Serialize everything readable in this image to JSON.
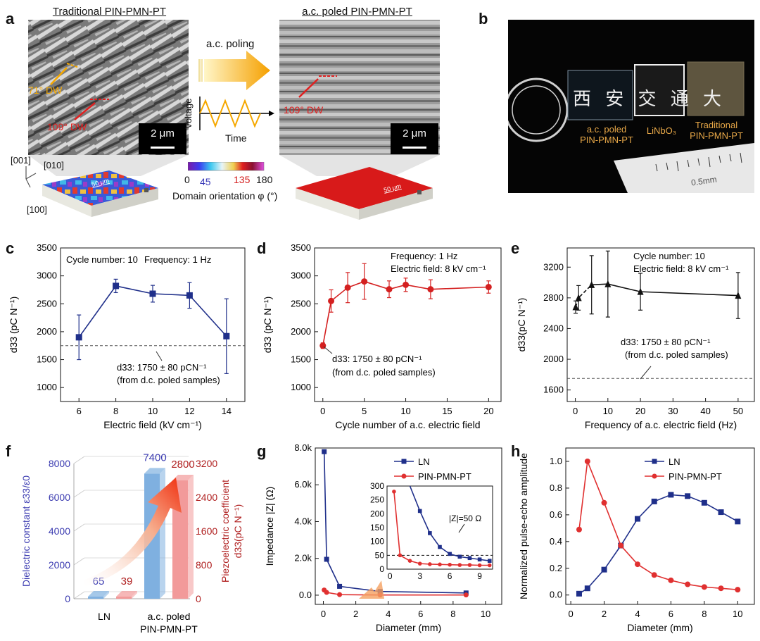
{
  "panel_labels": {
    "a": "a",
    "b": "b",
    "c": "c",
    "d": "d",
    "e": "e",
    "f": "f",
    "g": "g",
    "h": "h"
  },
  "panel_a": {
    "left_title": "Traditional PIN-PMN-PT",
    "right_title": "a.c. poled PIN-PMN-PT",
    "arrow_label": "a.c. poling",
    "voltage_label": "Voltage",
    "time_label": "Time",
    "dw71": "71° DW",
    "dw109_left": "109° DW",
    "dw109_right": "109° DW",
    "scale_left": "2 μm",
    "scale_right": "2 μm",
    "axis_001": "[001]",
    "axis_010": "[010]",
    "axis_100": "[100]",
    "colorbar_ticks": [
      "0",
      "45",
      "135",
      "180"
    ],
    "colorbar_label": "Domain orientation φ (°)",
    "block_scale_left": "50 μm",
    "block_scale_right": "50 μm"
  },
  "panel_b": {
    "sample1": [
      "a.c. poled",
      "PIN-PMN-PT"
    ],
    "sample2": "LiNbO₃",
    "sample3": [
      "Traditional",
      "PIN-PMN-PT"
    ],
    "chinese_text": "西 安 交 通 大",
    "ruler_label": "0.5mm"
  },
  "chart_data": [
    {
      "type": "line",
      "panel": "c",
      "annotations": [
        "Cycle number: 10",
        "Frequency: 1 Hz",
        "d33: 1750 ± 80 pCN⁻¹",
        "(from d.c. poled samples)"
      ],
      "xlabel": "Electric field (kV cm⁻¹)",
      "ylabel": "d33 (pC N⁻¹)",
      "x": [
        6,
        8,
        10,
        12,
        14
      ],
      "y": [
        1900,
        2820,
        2680,
        2650,
        1920
      ],
      "yerr": [
        400,
        120,
        150,
        230,
        670
      ],
      "reference": 1750,
      "xlim": [
        5,
        15
      ],
      "ylim": [
        750,
        3500
      ],
      "xticks": [
        6,
        8,
        10,
        12,
        14
      ],
      "yticks": [
        1000,
        1500,
        2000,
        2500,
        3000,
        3500
      ],
      "color": "#1f2f8a"
    },
    {
      "type": "line",
      "panel": "d",
      "annotations": [
        "Frequency: 1 Hz",
        "Electric field: 8 kV cm⁻¹",
        "d33: 1750 ± 80 pCN⁻¹",
        "(from d.c. poled samples)"
      ],
      "xlabel": "Cycle number of a.c. electric field",
      "ylabel": "d33 (pC N⁻¹)",
      "x": [
        0,
        1,
        3,
        5,
        8,
        10,
        13,
        20
      ],
      "y": [
        1750,
        2550,
        2790,
        2900,
        2760,
        2840,
        2760,
        2800
      ],
      "yerr": [
        50,
        200,
        270,
        320,
        150,
        120,
        170,
        110
      ],
      "xlim": [
        -1,
        21.5
      ],
      "ylim": [
        750,
        3500
      ],
      "xticks": [
        0,
        5,
        10,
        15,
        20
      ],
      "yticks": [
        1000,
        1500,
        2000,
        2500,
        3000,
        3500
      ],
      "color": "#d42020"
    },
    {
      "type": "line",
      "panel": "e",
      "annotations": [
        "Cycle number: 10",
        "Electric field: 8 kV cm⁻¹",
        "d33: 1750 ± 80 pCN⁻¹",
        "(from d.c. poled samples)"
      ],
      "xlabel": "Frequency of a.c. electric field (Hz)",
      "ylabel": "d33(pC N⁻¹)",
      "x": [
        0.1,
        1,
        5,
        10,
        20,
        50
      ],
      "y": [
        2680,
        2800,
        2970,
        2980,
        2880,
        2830
      ],
      "yerr": [
        80,
        160,
        380,
        430,
        240,
        300
      ],
      "reference": 1750,
      "xlim": [
        -2.5,
        55
      ],
      "ylim": [
        1450,
        3450
      ],
      "xticks": [
        0,
        10,
        20,
        30,
        40,
        50
      ],
      "yticks": [
        1600,
        2000,
        2400,
        2800,
        3200
      ],
      "color": "#111111"
    },
    {
      "type": "bar",
      "panel": "f",
      "categories": [
        "LN",
        "a.c. poled PIN-PMN-PT"
      ],
      "series": [
        {
          "name": "Dielectric constant ε33/ε0",
          "values": [
            65,
            7400
          ],
          "color": "#7fb0e0"
        },
        {
          "name": "Piezoelectric coefficient d33(pC N⁻¹)",
          "values": [
            39,
            2800
          ],
          "color": "#f29a9a"
        }
      ],
      "left_yticks": [
        0,
        2000,
        4000,
        6000,
        8000
      ],
      "right_yticks": [
        0,
        800,
        1600,
        2400,
        3200
      ],
      "left_ylim": [
        0,
        8000
      ],
      "right_ylim": [
        0,
        3200
      ],
      "left_ylabel": "Dielectric constant ε33/ε0",
      "right_ylabel": [
        "Piezoelectric coefficient",
        "d33(pC N⁻¹)"
      ],
      "category_labels": [
        "LN",
        "a.c. poled",
        "PIN-PMN-PT"
      ]
    },
    {
      "type": "line",
      "panel": "g",
      "xlabel": "Diameter (mm)",
      "ylabel": "Impedance |Z| (Ω)",
      "series": [
        {
          "name": "LN",
          "x": [
            0.05,
            0.2,
            1,
            3.5,
            8.8
          ],
          "y": [
            7800,
            1950,
            480,
            200,
            120
          ],
          "color": "#1f2f8a"
        },
        {
          "name": "PIN-PMN-PT",
          "x": [
            0.05,
            0.2,
            1,
            3.5,
            8.8
          ],
          "y": [
            280,
            150,
            30,
            10,
            10
          ],
          "color": "#e03030"
        }
      ],
      "xlim": [
        -0.5,
        11
      ],
      "ylim": [
        -500,
        8000
      ],
      "xticks": [
        0,
        2,
        4,
        6,
        8,
        10
      ],
      "ytick_labels": [
        "0.0",
        "2.0k",
        "4.0k",
        "6.0k",
        "8.0k"
      ],
      "yticks": [
        0,
        2000,
        4000,
        6000,
        8000
      ],
      "inset": {
        "annotation": "|Z|=50 Ω",
        "threshold": 50,
        "xticks": [
          0,
          3,
          6,
          9
        ],
        "yticks": [
          0,
          50,
          100,
          150,
          200,
          250,
          300
        ],
        "xlim": [
          -0.3,
          10.3
        ],
        "ylim": [
          0,
          300
        ],
        "LN": {
          "x": [
            2,
            3,
            4,
            5,
            6,
            7,
            8,
            9,
            10
          ],
          "y": [
            300,
            210,
            130,
            80,
            55,
            45,
            40,
            35,
            30
          ]
        },
        "PIN": {
          "x": [
            0.4,
            1,
            2,
            3,
            4,
            5,
            6,
            7,
            8,
            9,
            10
          ],
          "y": [
            280,
            50,
            30,
            20,
            18,
            17,
            16,
            15,
            15,
            14,
            14
          ]
        }
      }
    },
    {
      "type": "line",
      "panel": "h",
      "xlabel": "Diameter (mm)",
      "ylabel": "Normalized pulse-echo amplitude",
      "series": [
        {
          "name": "LN",
          "x": [
            0.5,
            1,
            2,
            3,
            4,
            5,
            6,
            7,
            8,
            9,
            10
          ],
          "y": [
            0.01,
            0.05,
            0.19,
            0.37,
            0.57,
            0.7,
            0.75,
            0.74,
            0.69,
            0.62,
            0.55
          ],
          "color": "#1f2f8a"
        },
        {
          "name": "PIN-PMN-PT",
          "x": [
            0.5,
            1,
            2,
            3,
            4,
            5,
            6,
            7,
            8,
            9,
            10
          ],
          "y": [
            0.49,
            1.0,
            0.69,
            0.37,
            0.23,
            0.15,
            0.11,
            0.08,
            0.06,
            0.05,
            0.04
          ],
          "color": "#e03030"
        }
      ],
      "xlim": [
        -0.3,
        11
      ],
      "ylim": [
        -0.07,
        1.1
      ],
      "xticks": [
        0,
        2,
        4,
        6,
        8,
        10
      ],
      "yticks": [
        0.0,
        0.2,
        0.4,
        0.6,
        0.8,
        1.0
      ]
    }
  ]
}
